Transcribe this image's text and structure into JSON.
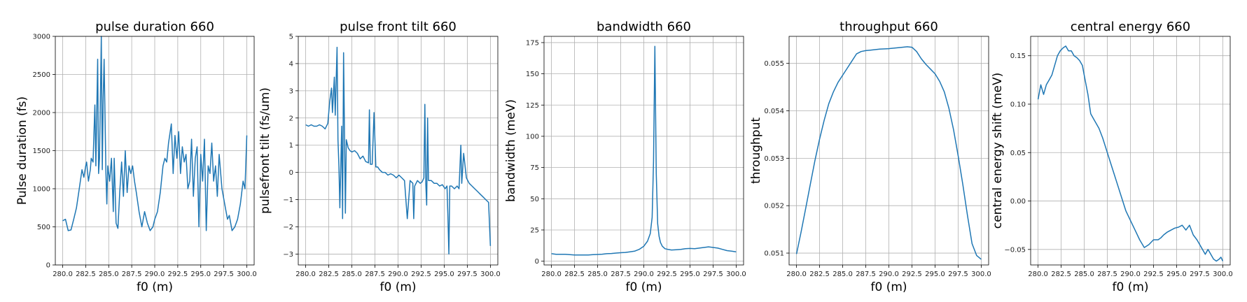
{
  "chart_data": [
    {
      "type": "line",
      "title": "pulse duration 660",
      "xlabel": "f0 (m)",
      "ylabel": "Pulse duration (fs)",
      "xlim": [
        279.2,
        300.8
      ],
      "ylim": [
        0,
        3000
      ],
      "xticks": [
        "280.0",
        "282.5",
        "285.0",
        "287.5",
        "290.0",
        "292.5",
        "295.0",
        "297.5",
        "300.0"
      ],
      "yticks": [
        "0",
        "500",
        "1000",
        "1500",
        "2000",
        "2500",
        "3000"
      ],
      "yticks_values": [
        0,
        500,
        1000,
        1500,
        2000,
        2500,
        3000
      ],
      "grid": true,
      "color": "#1f77b4",
      "x": [
        280.0,
        280.3,
        280.6,
        280.9,
        281.2,
        281.5,
        281.8,
        282.1,
        282.3,
        282.5,
        282.6,
        282.8,
        283.0,
        283.1,
        283.3,
        283.5,
        283.6,
        283.8,
        283.9,
        284.0,
        284.2,
        284.3,
        284.4,
        284.5,
        284.7,
        284.8,
        284.9,
        285.1,
        285.3,
        285.5,
        285.6,
        285.8,
        286.0,
        286.2,
        286.4,
        286.6,
        286.8,
        287.0,
        287.2,
        287.4,
        287.6,
        287.8,
        288.0,
        288.3,
        288.6,
        288.9,
        289.2,
        289.5,
        289.8,
        290.0,
        290.3,
        290.6,
        290.9,
        291.1,
        291.3,
        291.5,
        291.8,
        292.0,
        292.2,
        292.4,
        292.6,
        292.8,
        293.0,
        293.2,
        293.4,
        293.6,
        293.8,
        294.0,
        294.2,
        294.4,
        294.6,
        294.8,
        295.0,
        295.2,
        295.4,
        295.6,
        295.8,
        296.0,
        296.2,
        296.4,
        296.6,
        296.8,
        297.0,
        297.3,
        297.6,
        297.9,
        298.1,
        298.4,
        298.7,
        299.0,
        299.3,
        299.6,
        299.8,
        300.0
      ],
      "y": [
        580,
        600,
        450,
        460,
        600,
        750,
        1000,
        1250,
        1150,
        1300,
        1350,
        1100,
        1250,
        1400,
        1350,
        2100,
        1300,
        2700,
        1200,
        1400,
        3000,
        1250,
        2200,
        2700,
        1200,
        800,
        1300,
        1100,
        1400,
        700,
        1400,
        550,
        480,
        950,
        1350,
        900,
        1500,
        950,
        1300,
        1200,
        1300,
        1100,
        950,
        700,
        500,
        700,
        550,
        450,
        500,
        600,
        700,
        950,
        1300,
        1400,
        1350,
        1600,
        1850,
        1200,
        1700,
        1400,
        1750,
        1200,
        1550,
        1350,
        1450,
        1000,
        1100,
        1650,
        900,
        1400,
        1550,
        500,
        1450,
        1100,
        1650,
        450,
        1300,
        1200,
        1600,
        1100,
        1300,
        900,
        1450,
        1000,
        800,
        600,
        650,
        450,
        500,
        600,
        800,
        1100,
        1000,
        1700
      ]
    },
    {
      "type": "line",
      "title": "pulse front tilt 660",
      "xlabel": "f0 (m)",
      "ylabel": "pulsefront tilt (fs/um)",
      "xlim": [
        279.2,
        300.8
      ],
      "ylim": [
        -3.4,
        5
      ],
      "xticks": [
        "280.0",
        "282.5",
        "285.0",
        "287.5",
        "290.0",
        "292.5",
        "295.0",
        "297.5",
        "300.0"
      ],
      "yticks": [
        "−3",
        "−2",
        "−1",
        "0",
        "1",
        "2",
        "3",
        "4",
        "5"
      ],
      "yticks_values": [
        -3,
        -2,
        -1,
        0,
        1,
        2,
        3,
        4,
        5
      ],
      "grid": true,
      "color": "#1f77b4",
      "x": [
        280.0,
        280.3,
        280.6,
        280.9,
        281.2,
        281.5,
        281.8,
        282.1,
        282.4,
        282.6,
        282.8,
        282.9,
        283.1,
        283.2,
        283.4,
        283.5,
        283.6,
        283.7,
        283.9,
        284.0,
        284.1,
        284.3,
        284.4,
        284.6,
        284.8,
        285.0,
        285.3,
        285.6,
        285.9,
        286.2,
        286.5,
        286.8,
        286.9,
        287.0,
        287.2,
        287.4,
        287.6,
        287.8,
        288.0,
        288.3,
        288.6,
        288.9,
        289.2,
        289.5,
        289.8,
        290.1,
        290.4,
        290.7,
        291.0,
        291.3,
        291.6,
        291.7,
        291.8,
        292.1,
        292.4,
        292.6,
        292.8,
        292.9,
        293.0,
        293.1,
        293.2,
        293.3,
        293.6,
        293.9,
        294.2,
        294.5,
        294.8,
        295.1,
        295.3,
        295.4,
        295.5,
        295.6,
        295.8,
        296.1,
        296.4,
        296.6,
        296.8,
        296.9,
        297.1,
        297.4,
        297.7,
        298.0,
        298.3,
        298.6,
        298.9,
        299.2,
        299.5,
        299.8,
        300.0
      ],
      "y": [
        1.75,
        1.7,
        1.75,
        1.7,
        1.7,
        1.75,
        1.7,
        1.6,
        1.8,
        2.6,
        3.1,
        2.2,
        3.5,
        2.1,
        4.6,
        1.2,
        0.2,
        -1.3,
        1.7,
        -1.7,
        4.4,
        -1.5,
        1.2,
        0.9,
        0.8,
        0.75,
        0.8,
        0.7,
        0.5,
        0.6,
        0.4,
        0.35,
        2.3,
        0.3,
        0.3,
        2.2,
        0.2,
        0.2,
        0.1,
        0.0,
        0.0,
        -0.1,
        -0.05,
        -0.1,
        -0.2,
        -0.1,
        -0.2,
        -0.3,
        -1.7,
        -0.3,
        -0.4,
        -1.7,
        -0.5,
        -0.3,
        -0.4,
        -0.35,
        -0.2,
        2.5,
        -0.4,
        -1.2,
        2.0,
        -0.3,
        -0.3,
        -0.4,
        -0.4,
        -0.5,
        -0.45,
        -0.6,
        -0.5,
        -1.6,
        -3.0,
        -0.5,
        -0.5,
        -0.6,
        -0.5,
        -0.6,
        1.0,
        -0.4,
        0.7,
        -0.2,
        -0.4,
        -0.5,
        -0.6,
        -0.7,
        -0.8,
        -0.9,
        -1.0,
        -1.1,
        -2.7
      ]
    },
    {
      "type": "line",
      "title": "bandwidth 660",
      "xlabel": "f0 (m)",
      "ylabel": "bandwidth (meV)",
      "xlim": [
        279.2,
        300.8
      ],
      "ylim": [
        -3,
        180
      ],
      "xticks": [
        "280.0",
        "282.5",
        "285.0",
        "287.5",
        "290.0",
        "292.5",
        "295.0",
        "297.5",
        "300.0"
      ],
      "yticks": [
        "0",
        "25",
        "50",
        "75",
        "100",
        "125",
        "150",
        "175"
      ],
      "yticks_values": [
        0,
        25,
        50,
        75,
        100,
        125,
        150,
        175
      ],
      "grid": true,
      "color": "#1f77b4",
      "x": [
        280.0,
        280.5,
        281.0,
        281.5,
        282.0,
        282.5,
        283.0,
        283.5,
        284.0,
        284.5,
        285.0,
        285.5,
        286.0,
        286.5,
        287.0,
        287.5,
        288.0,
        288.5,
        289.0,
        289.5,
        290.0,
        290.4,
        290.7,
        290.9,
        291.05,
        291.2,
        291.35,
        291.5,
        291.65,
        291.8,
        292.0,
        292.3,
        292.6,
        293.0,
        293.5,
        294.0,
        294.5,
        295.0,
        295.5,
        296.0,
        296.5,
        297.0,
        297.5,
        298.0,
        298.5,
        299.0,
        299.5,
        300.0
      ],
      "y": [
        6,
        5.5,
        5.5,
        5.5,
        5.2,
        5.0,
        5.0,
        5.0,
        5.0,
        5.2,
        5.4,
        5.6,
        6.0,
        6.2,
        6.5,
        6.8,
        7.0,
        7.5,
        8.0,
        9.5,
        12,
        16,
        22,
        35,
        80,
        172,
        70,
        30,
        20,
        15,
        12,
        10,
        9.5,
        9,
        9.2,
        9.5,
        10,
        10.2,
        10,
        10.5,
        11,
        11.5,
        11,
        10.5,
        9.5,
        8.5,
        8,
        7.5
      ]
    },
    {
      "type": "line",
      "title": "throughput 660",
      "xlabel": "f0 (m)",
      "ylabel": "throughput",
      "xlim": [
        279.2,
        300.8
      ],
      "ylim": [
        0.05075,
        0.05557
      ],
      "xticks": [
        "280.0",
        "282.5",
        "285.0",
        "287.5",
        "290.0",
        "292.5",
        "295.0",
        "297.5",
        "300.0"
      ],
      "yticks": [
        "0.051",
        "0.052",
        "0.053",
        "0.054",
        "0.055"
      ],
      "yticks_values": [
        0.051,
        0.052,
        0.053,
        0.054,
        0.055
      ],
      "grid": true,
      "color": "#1f77b4",
      "x": [
        280.0,
        280.5,
        281.0,
        281.5,
        282.0,
        282.5,
        283.0,
        283.5,
        284.0,
        284.5,
        285.0,
        285.5,
        286.0,
        286.5,
        287.0,
        287.5,
        288.0,
        289.0,
        290.0,
        291.0,
        292.0,
        292.5,
        293.0,
        293.5,
        294.0,
        294.5,
        295.0,
        295.5,
        296.0,
        296.5,
        297.0,
        297.5,
        298.0,
        298.5,
        299.0,
        299.5,
        300.0
      ],
      "y": [
        0.05098,
        0.05145,
        0.05195,
        0.05245,
        0.05295,
        0.0534,
        0.0538,
        0.05415,
        0.0544,
        0.0546,
        0.05475,
        0.0549,
        0.05505,
        0.0552,
        0.05525,
        0.05527,
        0.05528,
        0.0553,
        0.05531,
        0.05533,
        0.05535,
        0.05534,
        0.05525,
        0.0551,
        0.05498,
        0.05488,
        0.05478,
        0.05462,
        0.0544,
        0.05405,
        0.0536,
        0.05305,
        0.05245,
        0.0518,
        0.0512,
        0.05095,
        0.05087
      ]
    },
    {
      "type": "line",
      "title": "central energy 660",
      "xlabel": "f0 (m)",
      "ylabel": "central energy shift (meV)",
      "xlim": [
        279.2,
        300.8
      ],
      "ylim": [
        -0.066,
        0.17
      ],
      "xticks": [
        "280.0",
        "282.5",
        "285.0",
        "287.5",
        "290.0",
        "292.5",
        "295.0",
        "297.5",
        "300.0"
      ],
      "yticks": [
        "−0.05",
        "0.00",
        "0.05",
        "0.10",
        "0.15"
      ],
      "yticks_values": [
        -0.05,
        0.0,
        0.05,
        0.1,
        0.15
      ],
      "grid": true,
      "color": "#1f77b4",
      "x": [
        280.0,
        280.3,
        280.6,
        280.9,
        281.2,
        281.5,
        281.8,
        282.1,
        282.4,
        282.7,
        283.0,
        283.3,
        283.6,
        283.9,
        284.2,
        284.5,
        284.8,
        285.1,
        285.4,
        285.7,
        286.0,
        286.3,
        286.6,
        287.0,
        287.5,
        288.0,
        288.5,
        289.0,
        289.5,
        290.0,
        290.5,
        291.0,
        291.5,
        292.0,
        292.5,
        293.0,
        293.3,
        293.6,
        294.0,
        294.4,
        294.8,
        295.2,
        295.6,
        296.0,
        296.4,
        296.8,
        297.2,
        297.5,
        297.8,
        298.1,
        298.4,
        298.7,
        299.0,
        299.3,
        299.6,
        299.8,
        300.0
      ],
      "y": [
        0.105,
        0.12,
        0.11,
        0.12,
        0.125,
        0.13,
        0.14,
        0.15,
        0.155,
        0.158,
        0.16,
        0.155,
        0.155,
        0.15,
        0.148,
        0.145,
        0.14,
        0.125,
        0.11,
        0.09,
        0.085,
        0.08,
        0.075,
        0.065,
        0.05,
        0.035,
        0.02,
        0.005,
        -0.01,
        -0.02,
        -0.03,
        -0.04,
        -0.048,
        -0.045,
        -0.04,
        -0.04,
        -0.038,
        -0.035,
        -0.032,
        -0.03,
        -0.028,
        -0.027,
        -0.025,
        -0.03,
        -0.025,
        -0.035,
        -0.04,
        -0.045,
        -0.05,
        -0.055,
        -0.05,
        -0.055,
        -0.06,
        -0.062,
        -0.06,
        -0.058,
        -0.062
      ]
    }
  ]
}
